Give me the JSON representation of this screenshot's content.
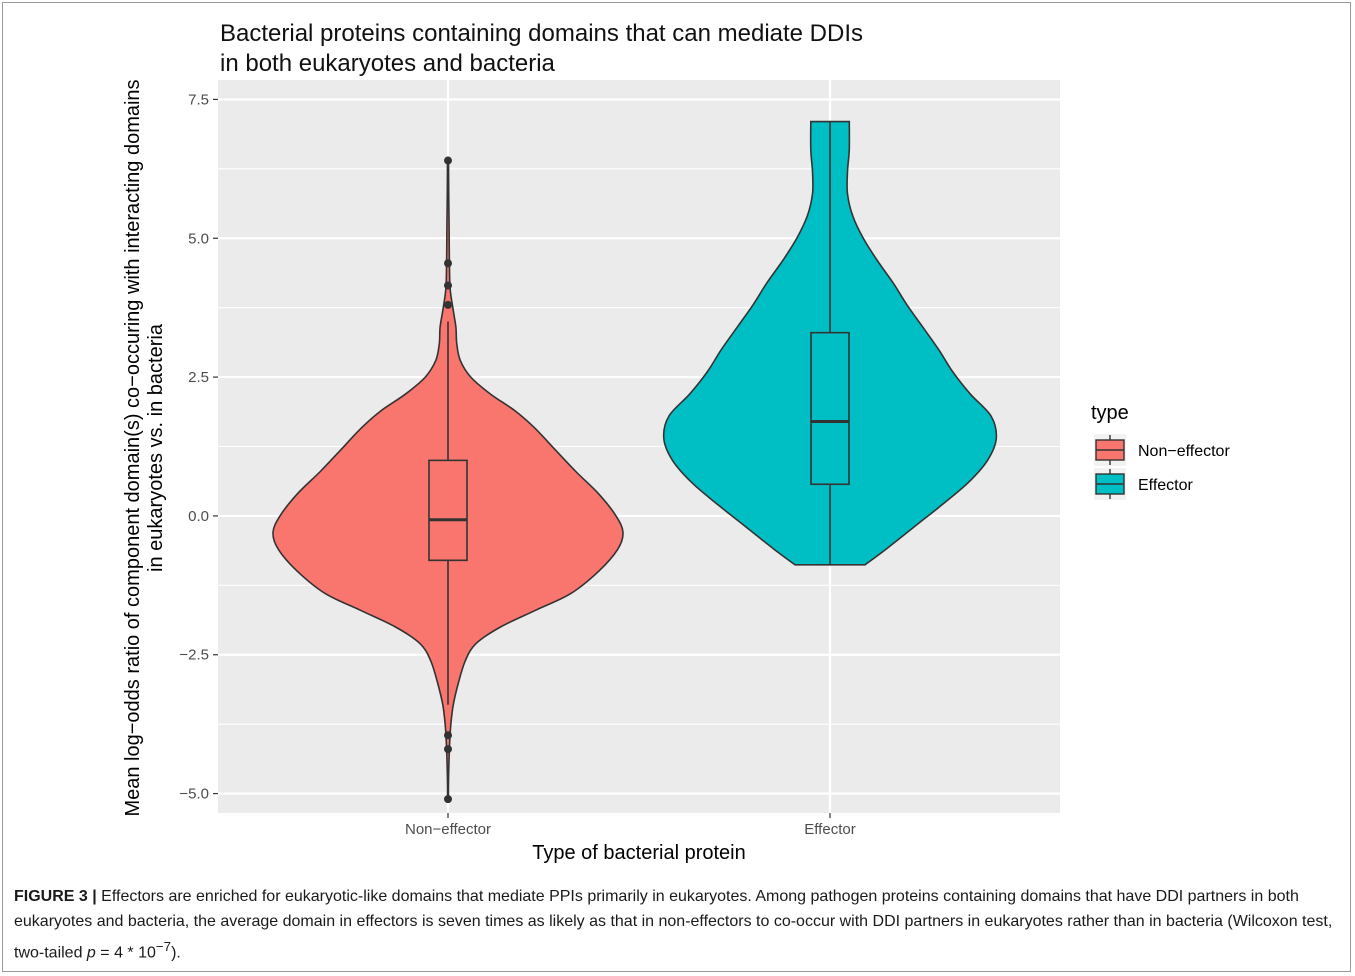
{
  "chart_data": {
    "type": "violin",
    "title_line1": "Bacterial proteins containing domains that can mediate DDIs",
    "title_line2": "in both eukaryotes and bacteria",
    "xlabel": "Type of bacterial protein",
    "ylabel_line1": "Mean log−odds ratio of component domain(s) co−occuring with interacting domains",
    "ylabel_line2": "in eukaryotes vs. in bacteria",
    "categories": [
      "Non−effector",
      "Effector"
    ],
    "ylim": [
      -5.35,
      7.85
    ],
    "y_ticks": [
      -5.0,
      -2.5,
      0.0,
      2.5,
      5.0,
      7.5
    ],
    "y_tick_labels": [
      "−5.0",
      "−2.5",
      "0.0",
      "2.5",
      "5.0",
      "7.5"
    ],
    "grid": true,
    "legend": {
      "title": "type",
      "position": "right",
      "items": [
        {
          "label": "Non−effector",
          "color": "#F8766D"
        },
        {
          "label": "Effector",
          "color": "#00BFC4"
        }
      ]
    },
    "series": [
      {
        "category": "Non−effector",
        "color": "#F8766D",
        "box": {
          "q1": -0.8,
          "median": -0.07,
          "q3": 1.0,
          "whisker_low": -3.4,
          "whisker_high": 3.5
        },
        "outliers": [
          6.4,
          4.55,
          4.15,
          3.8,
          -3.95,
          -4.2,
          -5.1
        ],
        "violin_range": [
          -5.1,
          6.4
        ],
        "density": [
          {
            "y": -5.1,
            "w": 0.002
          },
          {
            "y": -4.6,
            "w": 0.004
          },
          {
            "y": -4.2,
            "w": 0.008
          },
          {
            "y": -3.8,
            "w": 0.015
          },
          {
            "y": -3.4,
            "w": 0.03
          },
          {
            "y": -3.0,
            "w": 0.06
          },
          {
            "y": -2.6,
            "w": 0.1
          },
          {
            "y": -2.3,
            "w": 0.16
          },
          {
            "y": -2.0,
            "w": 0.3
          },
          {
            "y": -1.7,
            "w": 0.5
          },
          {
            "y": -1.4,
            "w": 0.7
          },
          {
            "y": -1.0,
            "w": 0.86
          },
          {
            "y": -0.6,
            "w": 0.97
          },
          {
            "y": -0.3,
            "w": 1.0
          },
          {
            "y": 0.0,
            "w": 0.96
          },
          {
            "y": 0.4,
            "w": 0.86
          },
          {
            "y": 0.8,
            "w": 0.73
          },
          {
            "y": 1.2,
            "w": 0.61
          },
          {
            "y": 1.6,
            "w": 0.49
          },
          {
            "y": 1.9,
            "w": 0.38
          },
          {
            "y": 2.2,
            "w": 0.24
          },
          {
            "y": 2.5,
            "w": 0.13
          },
          {
            "y": 2.8,
            "w": 0.07
          },
          {
            "y": 3.1,
            "w": 0.05
          },
          {
            "y": 3.4,
            "w": 0.045
          },
          {
            "y": 3.7,
            "w": 0.03
          },
          {
            "y": 4.1,
            "w": 0.012
          },
          {
            "y": 4.6,
            "w": 0.008
          },
          {
            "y": 5.2,
            "w": 0.006
          },
          {
            "y": 5.8,
            "w": 0.004
          },
          {
            "y": 6.4,
            "w": 0.003
          }
        ]
      },
      {
        "category": "Effector",
        "color": "#00BFC4",
        "box": {
          "q1": 0.57,
          "median": 1.7,
          "q3": 3.3,
          "whisker_low": -0.88,
          "whisker_high": 7.1
        },
        "outliers": [],
        "violin_range": [
          -0.88,
          7.1
        ],
        "density": [
          {
            "y": -0.88,
            "w": 0.2
          },
          {
            "y": -0.6,
            "w": 0.32
          },
          {
            "y": -0.2,
            "w": 0.48
          },
          {
            "y": 0.2,
            "w": 0.64
          },
          {
            "y": 0.6,
            "w": 0.79
          },
          {
            "y": 1.0,
            "w": 0.9
          },
          {
            "y": 1.4,
            "w": 0.95
          },
          {
            "y": 1.8,
            "w": 0.92
          },
          {
            "y": 2.2,
            "w": 0.8
          },
          {
            "y": 2.6,
            "w": 0.7
          },
          {
            "y": 3.0,
            "w": 0.62
          },
          {
            "y": 3.4,
            "w": 0.53
          },
          {
            "y": 3.8,
            "w": 0.44
          },
          {
            "y": 4.2,
            "w": 0.36
          },
          {
            "y": 4.6,
            "w": 0.27
          },
          {
            "y": 5.0,
            "w": 0.19
          },
          {
            "y": 5.4,
            "w": 0.13
          },
          {
            "y": 5.8,
            "w": 0.1
          },
          {
            "y": 6.2,
            "w": 0.1
          },
          {
            "y": 6.6,
            "w": 0.11
          },
          {
            "y": 7.1,
            "w": 0.11
          }
        ]
      }
    ]
  },
  "caption": {
    "label": "FIGURE 3 |",
    "text": " Effectors are enriched for eukaryotic-like domains that mediate PPIs primarily in eukaryotes. Among pathogen proteins containing domains that have DDI partners in both eukaryotes and bacteria, the average domain in effectors is seven times as likely as that in non-effectors to co-occur with DDI partners in eukaryotes rather than in bacteria (Wilcoxon test, two-tailed ",
    "p_symbol": "p",
    "p_value": " = 4 * 10",
    "p_exponent": "−7",
    "end": ")."
  },
  "colors": {
    "panel_background": "#EBEBEB",
    "grid": "#FFFFFF",
    "outline": "#333333"
  }
}
